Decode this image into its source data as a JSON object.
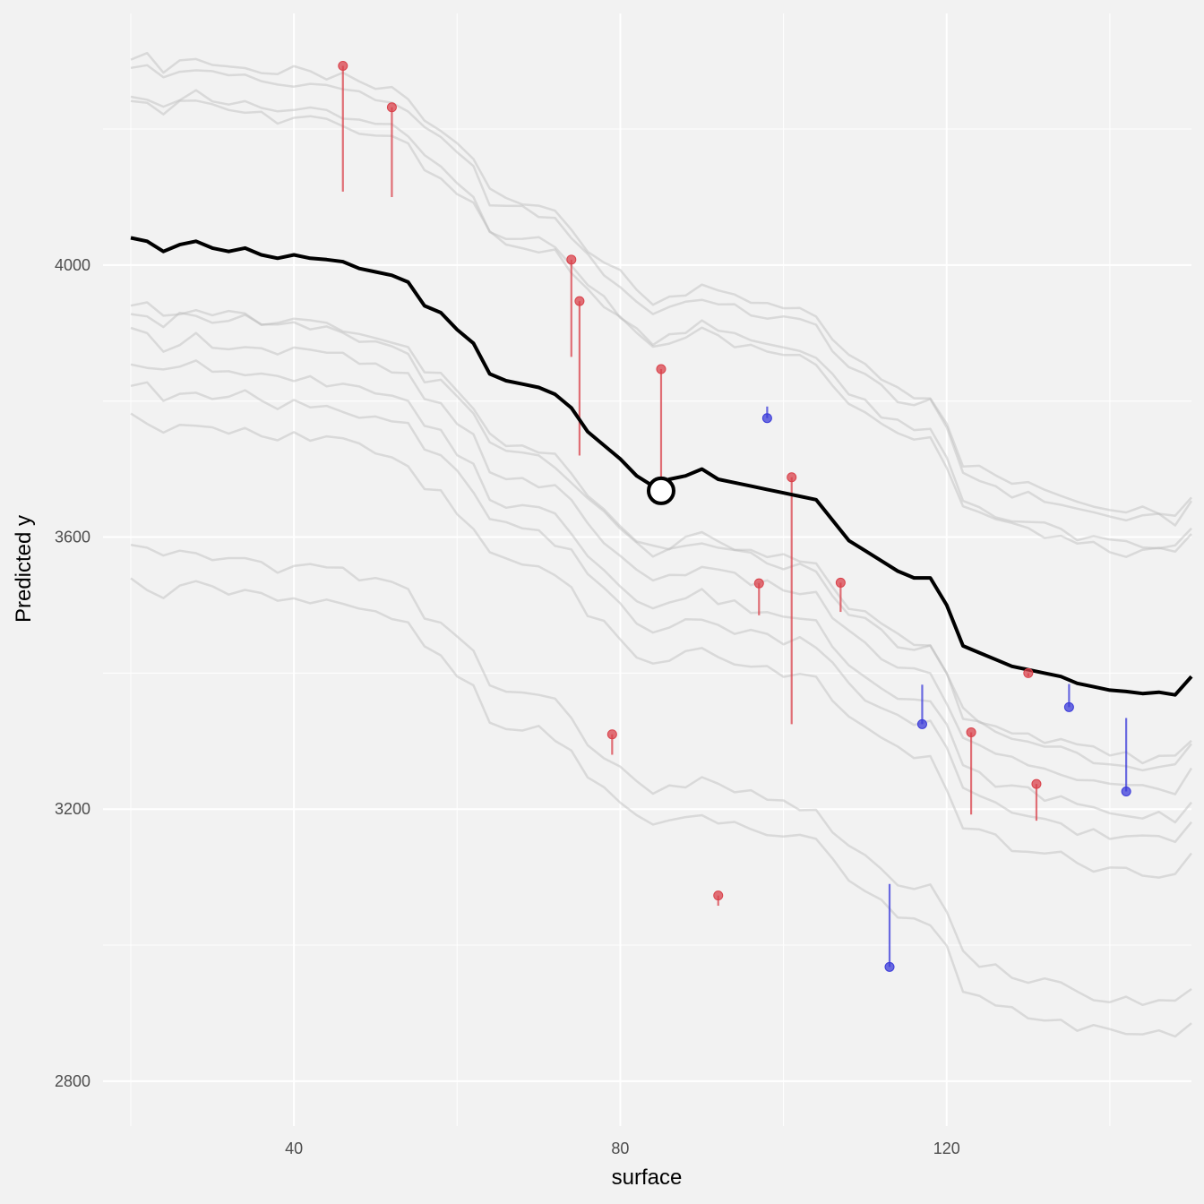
{
  "chart_data": {
    "type": "line",
    "title": "",
    "xlabel": "surface",
    "ylabel": "Predicted y",
    "xlim": [
      16.6,
      150
    ],
    "ylim": [
      2734,
      4370
    ],
    "x_ticks": [
      40,
      80,
      120
    ],
    "x_tick_labels": [
      "40",
      "80",
      "120"
    ],
    "x_minor_ticks": [
      20,
      60,
      100,
      140
    ],
    "y_ticks": [
      2800,
      3200,
      3600,
      4000
    ],
    "y_tick_labels": [
      "2800",
      "3200",
      "3600",
      "4000"
    ],
    "y_minor_ticks": [
      3000,
      3400,
      3800,
      4200
    ],
    "grid": true,
    "legend": "none",
    "colors": {
      "panel_bg": "#f2f2f2",
      "grid": "#ffffff",
      "ice_lines": "#bbbbbb",
      "mean_line": "#000000",
      "residual_positive": "#d9424b",
      "residual_negative": "#3b3bd9",
      "highlight_point_fill": "#ffffff"
    },
    "mean_curve": {
      "x": [
        20,
        22,
        24,
        26,
        28,
        30,
        32,
        34,
        36,
        38,
        40,
        42,
        44,
        46,
        48,
        50,
        52,
        54,
        56,
        58,
        60,
        62,
        64,
        66,
        68,
        70,
        72,
        74,
        76,
        78,
        80,
        82,
        84,
        86,
        88,
        90,
        92,
        94,
        96,
        98,
        100,
        102,
        104,
        106,
        108,
        110,
        112,
        114,
        116,
        118,
        120,
        122,
        124,
        126,
        128,
        130,
        132,
        134,
        136,
        138,
        140,
        142,
        144,
        146,
        148,
        150
      ],
      "y": [
        4040,
        4035,
        4020,
        4030,
        4035,
        4025,
        4020,
        4025,
        4015,
        4010,
        4015,
        4010,
        4008,
        4005,
        3995,
        3990,
        3985,
        3975,
        3940,
        3930,
        3905,
        3885,
        3840,
        3830,
        3825,
        3820,
        3810,
        3790,
        3755,
        3735,
        3715,
        3690,
        3675,
        3685,
        3690,
        3700,
        3685,
        3680,
        3675,
        3670,
        3665,
        3660,
        3655,
        3625,
        3595,
        3580,
        3565,
        3550,
        3540,
        3540,
        3500,
        3440,
        3430,
        3420,
        3410,
        3405,
        3400,
        3395,
        3385,
        3380,
        3375,
        3373,
        3370,
        3372,
        3368,
        3395
      ]
    },
    "ice_offsets": [
      270,
      255,
      215,
      205,
      -95,
      -105,
      -140,
      -180,
      -215,
      -265,
      -455,
      -505
    ],
    "highlight_point": {
      "x": 85,
      "y": 3668
    },
    "observations": [
      {
        "x": 46,
        "y": 4293,
        "pred": 4108
      },
      {
        "x": 52,
        "y": 4232,
        "pred": 4100
      },
      {
        "x": 74,
        "y": 4008,
        "pred": 3865
      },
      {
        "x": 75,
        "y": 3947,
        "pred": 3720
      },
      {
        "x": 79,
        "y": 3310,
        "pred": 3280
      },
      {
        "x": 85,
        "y": 3847,
        "pred": 3680
      },
      {
        "x": 92,
        "y": 3073,
        "pred": 3058
      },
      {
        "x": 97,
        "y": 3532,
        "pred": 3485
      },
      {
        "x": 98,
        "y": 3775,
        "pred": 3792
      },
      {
        "x": 101,
        "y": 3688,
        "pred": 3325
      },
      {
        "x": 107,
        "y": 3533,
        "pred": 3490
      },
      {
        "x": 113,
        "y": 2968,
        "pred": 3090
      },
      {
        "x": 117,
        "y": 3325,
        "pred": 3383
      },
      {
        "x": 123,
        "y": 3313,
        "pred": 3192
      },
      {
        "x": 130,
        "y": 3400,
        "pred": 3395
      },
      {
        "x": 131,
        "y": 3237,
        "pred": 3183
      },
      {
        "x": 135,
        "y": 3350,
        "pred": 3384
      },
      {
        "x": 142,
        "y": 3226,
        "pred": 3334
      }
    ]
  }
}
